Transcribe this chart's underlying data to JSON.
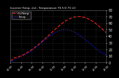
{
  "title": "Inverter Temp. d.d - Temperature 70.5 D 71 LO",
  "legend_labels": [
    "InvTemp",
    "Temp"
  ],
  "bg_color": "#000000",
  "plot_bg_color": "#000000",
  "grid_color": "#444444",
  "line1_color": "#ff2222",
  "line2_color": "#2222ff",
  "line1_style": "--",
  "line2_style": ":",
  "ylabel_color": "#ffffff",
  "xlabel_color": "#ffffff",
  "title_color": "#ffffff",
  "ylim": [
    0,
    80
  ],
  "yticks": [
    0,
    10,
    20,
    30,
    40,
    50,
    60,
    70,
    80
  ],
  "num_points": 50
}
